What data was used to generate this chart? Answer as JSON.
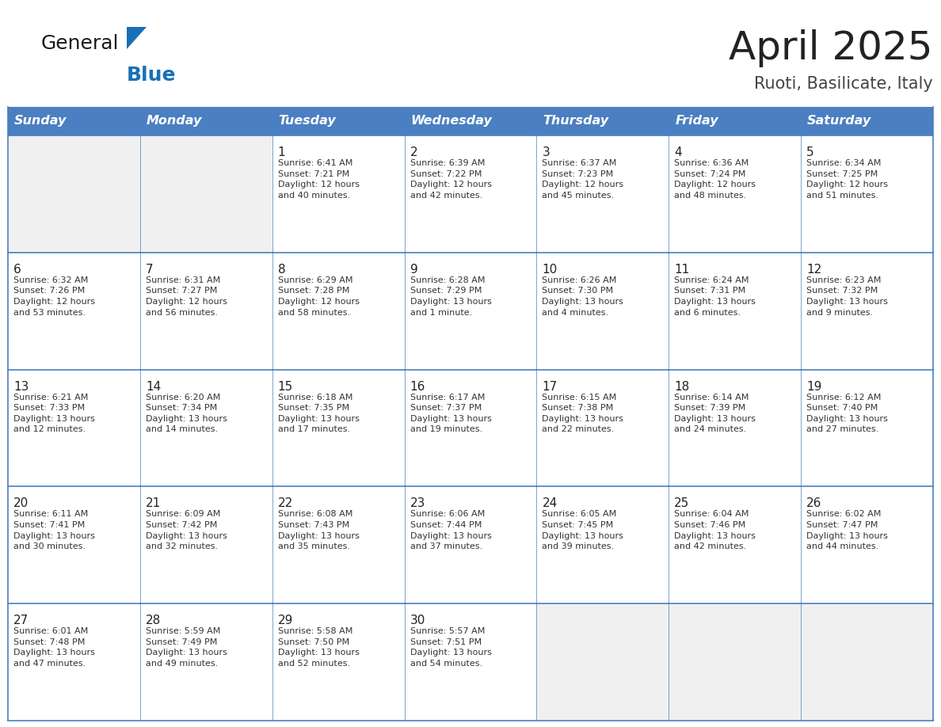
{
  "title": "April 2025",
  "subtitle": "Ruoti, Basilicate, Italy",
  "days_of_week": [
    "Sunday",
    "Monday",
    "Tuesday",
    "Wednesday",
    "Thursday",
    "Friday",
    "Saturday"
  ],
  "header_bg": "#4a7fc1",
  "header_text": "#FFFFFF",
  "cell_bg_light": "#FFFFFF",
  "cell_bg_empty": "#f0f0f0",
  "border_color": "#4a7fc1",
  "day_number_color": "#222222",
  "text_color": "#333333",
  "logo_general_color": "#1a1a1a",
  "logo_blue_color": "#1a70b8",
  "title_color": "#222222",
  "subtitle_color": "#444444",
  "weeks": [
    [
      {
        "day": null,
        "info": null
      },
      {
        "day": null,
        "info": null
      },
      {
        "day": 1,
        "info": "Sunrise: 6:41 AM\nSunset: 7:21 PM\nDaylight: 12 hours\nand 40 minutes."
      },
      {
        "day": 2,
        "info": "Sunrise: 6:39 AM\nSunset: 7:22 PM\nDaylight: 12 hours\nand 42 minutes."
      },
      {
        "day": 3,
        "info": "Sunrise: 6:37 AM\nSunset: 7:23 PM\nDaylight: 12 hours\nand 45 minutes."
      },
      {
        "day": 4,
        "info": "Sunrise: 6:36 AM\nSunset: 7:24 PM\nDaylight: 12 hours\nand 48 minutes."
      },
      {
        "day": 5,
        "info": "Sunrise: 6:34 AM\nSunset: 7:25 PM\nDaylight: 12 hours\nand 51 minutes."
      }
    ],
    [
      {
        "day": 6,
        "info": "Sunrise: 6:32 AM\nSunset: 7:26 PM\nDaylight: 12 hours\nand 53 minutes."
      },
      {
        "day": 7,
        "info": "Sunrise: 6:31 AM\nSunset: 7:27 PM\nDaylight: 12 hours\nand 56 minutes."
      },
      {
        "day": 8,
        "info": "Sunrise: 6:29 AM\nSunset: 7:28 PM\nDaylight: 12 hours\nand 58 minutes."
      },
      {
        "day": 9,
        "info": "Sunrise: 6:28 AM\nSunset: 7:29 PM\nDaylight: 13 hours\nand 1 minute."
      },
      {
        "day": 10,
        "info": "Sunrise: 6:26 AM\nSunset: 7:30 PM\nDaylight: 13 hours\nand 4 minutes."
      },
      {
        "day": 11,
        "info": "Sunrise: 6:24 AM\nSunset: 7:31 PM\nDaylight: 13 hours\nand 6 minutes."
      },
      {
        "day": 12,
        "info": "Sunrise: 6:23 AM\nSunset: 7:32 PM\nDaylight: 13 hours\nand 9 minutes."
      }
    ],
    [
      {
        "day": 13,
        "info": "Sunrise: 6:21 AM\nSunset: 7:33 PM\nDaylight: 13 hours\nand 12 minutes."
      },
      {
        "day": 14,
        "info": "Sunrise: 6:20 AM\nSunset: 7:34 PM\nDaylight: 13 hours\nand 14 minutes."
      },
      {
        "day": 15,
        "info": "Sunrise: 6:18 AM\nSunset: 7:35 PM\nDaylight: 13 hours\nand 17 minutes."
      },
      {
        "day": 16,
        "info": "Sunrise: 6:17 AM\nSunset: 7:37 PM\nDaylight: 13 hours\nand 19 minutes."
      },
      {
        "day": 17,
        "info": "Sunrise: 6:15 AM\nSunset: 7:38 PM\nDaylight: 13 hours\nand 22 minutes."
      },
      {
        "day": 18,
        "info": "Sunrise: 6:14 AM\nSunset: 7:39 PM\nDaylight: 13 hours\nand 24 minutes."
      },
      {
        "day": 19,
        "info": "Sunrise: 6:12 AM\nSunset: 7:40 PM\nDaylight: 13 hours\nand 27 minutes."
      }
    ],
    [
      {
        "day": 20,
        "info": "Sunrise: 6:11 AM\nSunset: 7:41 PM\nDaylight: 13 hours\nand 30 minutes."
      },
      {
        "day": 21,
        "info": "Sunrise: 6:09 AM\nSunset: 7:42 PM\nDaylight: 13 hours\nand 32 minutes."
      },
      {
        "day": 22,
        "info": "Sunrise: 6:08 AM\nSunset: 7:43 PM\nDaylight: 13 hours\nand 35 minutes."
      },
      {
        "day": 23,
        "info": "Sunrise: 6:06 AM\nSunset: 7:44 PM\nDaylight: 13 hours\nand 37 minutes."
      },
      {
        "day": 24,
        "info": "Sunrise: 6:05 AM\nSunset: 7:45 PM\nDaylight: 13 hours\nand 39 minutes."
      },
      {
        "day": 25,
        "info": "Sunrise: 6:04 AM\nSunset: 7:46 PM\nDaylight: 13 hours\nand 42 minutes."
      },
      {
        "day": 26,
        "info": "Sunrise: 6:02 AM\nSunset: 7:47 PM\nDaylight: 13 hours\nand 44 minutes."
      }
    ],
    [
      {
        "day": 27,
        "info": "Sunrise: 6:01 AM\nSunset: 7:48 PM\nDaylight: 13 hours\nand 47 minutes."
      },
      {
        "day": 28,
        "info": "Sunrise: 5:59 AM\nSunset: 7:49 PM\nDaylight: 13 hours\nand 49 minutes."
      },
      {
        "day": 29,
        "info": "Sunrise: 5:58 AM\nSunset: 7:50 PM\nDaylight: 13 hours\nand 52 minutes."
      },
      {
        "day": 30,
        "info": "Sunrise: 5:57 AM\nSunset: 7:51 PM\nDaylight: 13 hours\nand 54 minutes."
      },
      {
        "day": null,
        "info": null
      },
      {
        "day": null,
        "info": null
      },
      {
        "day": null,
        "info": null
      }
    ]
  ]
}
